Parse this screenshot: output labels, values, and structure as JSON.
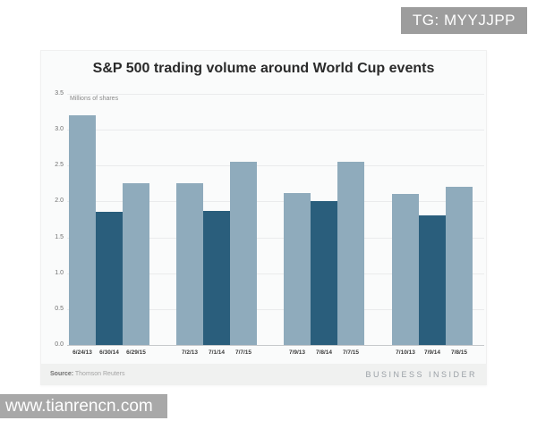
{
  "watermarks": {
    "top_right": "TG: MYYJJPP",
    "bottom_left": "www.tianrencn.com"
  },
  "chart_data": {
    "type": "bar",
    "title": "S&P 500 trading volume around World Cup events",
    "ylabel": "Millions of shares",
    "xlabel": "",
    "ylim": [
      0,
      3.5
    ],
    "ytick_step": 0.5,
    "ytick_labels": [
      "0.0",
      "0.5",
      "1.0",
      "1.5",
      "2.0",
      "2.5",
      "3.0",
      "3.5"
    ],
    "grid": true,
    "legend_position": "none",
    "bar_colors": {
      "default": "#8fabbc",
      "world_cup_year": "#2a5e7c"
    },
    "groups": [
      {
        "categories": [
          "6/24/13",
          "6/30/14",
          "6/29/15"
        ],
        "values": [
          3.2,
          1.85,
          2.25
        ],
        "highlight_index": 1
      },
      {
        "categories": [
          "7/2/13",
          "7/1/14",
          "7/7/15"
        ],
        "values": [
          2.25,
          1.87,
          2.55
        ],
        "highlight_index": 1
      },
      {
        "categories": [
          "7/9/13",
          "7/8/14",
          "7/7/15"
        ],
        "values": [
          2.12,
          2.0,
          2.55
        ],
        "highlight_index": 1
      },
      {
        "categories": [
          "7/10/13",
          "7/9/14",
          "7/8/15"
        ],
        "values": [
          2.1,
          1.81,
          2.21
        ],
        "highlight_index": 1
      }
    ]
  },
  "footer": {
    "source_label": "Source:",
    "source_value": " Thomson Reuters",
    "brand": "BUSINESS INSIDER"
  }
}
